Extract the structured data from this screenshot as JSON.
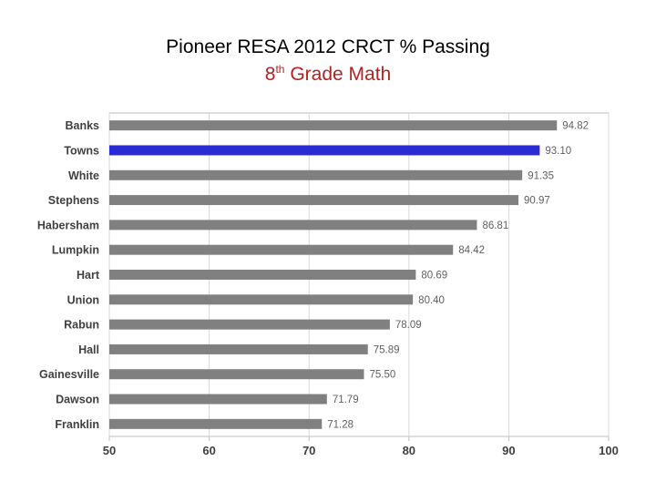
{
  "title": {
    "main": "Pioneer RESA 2012 CRCT % Passing",
    "sub_prefix": "8",
    "sub_sup": "th",
    "sub_rest": " Grade Math"
  },
  "colors": {
    "bar": "#808080",
    "highlight": "#2b2bd6",
    "subtitle": "#b22222",
    "grid": "#d9d9d9",
    "axis": "#bfbfbf",
    "label": "#404040",
    "value_label": "#606060"
  },
  "chart_data": {
    "type": "bar",
    "orientation": "horizontal",
    "categories": [
      "Banks",
      "Towns",
      "White",
      "Stephens",
      "Habersham",
      "Lumpkin",
      "Hart",
      "Union",
      "Rabun",
      "Hall",
      "Gainesville",
      "Dawson",
      "Franklin"
    ],
    "values": [
      94.82,
      93.1,
      91.35,
      90.97,
      86.81,
      84.42,
      80.69,
      80.4,
      78.09,
      75.89,
      75.5,
      71.79,
      71.28
    ],
    "value_labels": [
      "94.82",
      "93.10",
      "91.35",
      "90.97",
      "86.81",
      "84.42",
      "80.69",
      "80.40",
      "78.09",
      "75.89",
      "75.50",
      "71.79",
      "71.28"
    ],
    "highlight": "Towns",
    "xlim": [
      50,
      100
    ],
    "xticks": [
      50,
      60,
      70,
      80,
      90,
      100
    ],
    "grid": true,
    "legend": "none"
  }
}
